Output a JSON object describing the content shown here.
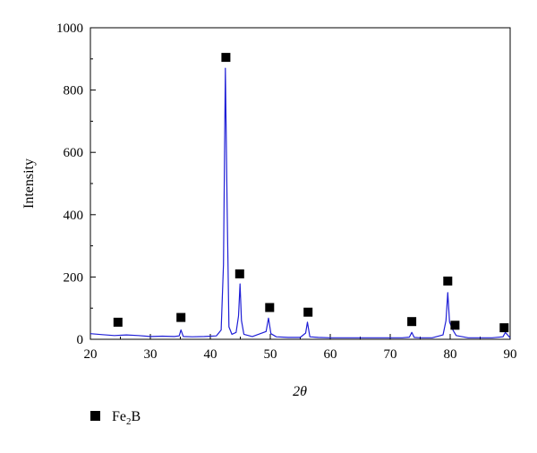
{
  "chart_data": {
    "type": "line",
    "xlabel": "2θ",
    "ylabel": "Intensity",
    "xlim": [
      20,
      90
    ],
    "ylim": [
      0,
      1000
    ],
    "x_ticks": [
      20,
      30,
      40,
      50,
      60,
      70,
      80,
      90
    ],
    "y_ticks": [
      0,
      200,
      400,
      600,
      800,
      1000
    ],
    "series": [
      {
        "color": "#1f1fd6",
        "x": [
          20,
          22,
          24,
          26,
          28,
          30,
          32,
          34,
          34.8,
          35.1,
          35.5,
          37,
          39,
          41,
          41.8,
          42.2,
          42.5,
          42.8,
          43.1,
          43.6,
          44.3,
          44.7,
          44.95,
          45.2,
          45.6,
          47,
          49.3,
          49.7,
          50.1,
          51,
          53,
          55,
          55.9,
          56.2,
          56.6,
          58,
          60,
          62,
          64,
          66,
          68,
          70,
          72,
          73.2,
          73.6,
          74,
          75,
          77,
          78.8,
          79.3,
          79.6,
          79.9,
          80.5,
          81,
          83,
          85,
          87,
          88.8,
          89.2,
          90
        ],
        "y": [
          18,
          15,
          12,
          14,
          12,
          9,
          10,
          9,
          11,
          30,
          9,
          8,
          9,
          11,
          30,
          240,
          870,
          420,
          40,
          16,
          22,
          75,
          178,
          60,
          16,
          9,
          25,
          68,
          18,
          8,
          6,
          6,
          20,
          55,
          8,
          6,
          5,
          5,
          5,
          5,
          5,
          5,
          5,
          7,
          22,
          6,
          5,
          5,
          14,
          60,
          150,
          55,
          28,
          12,
          5,
          5,
          5,
          8,
          22,
          5
        ]
      }
    ],
    "markers": {
      "series_name": "Fe₂B",
      "x": [
        24.6,
        35.1,
        42.6,
        44.9,
        49.9,
        56.3,
        73.6,
        79.6,
        80.8,
        89
      ],
      "y": [
        55,
        70,
        905,
        210,
        102,
        87,
        57,
        187,
        45,
        37
      ]
    },
    "legend": {
      "position": "bottom-left",
      "label_main": "Fe",
      "label_sub": "2",
      "label_end": "B"
    }
  }
}
